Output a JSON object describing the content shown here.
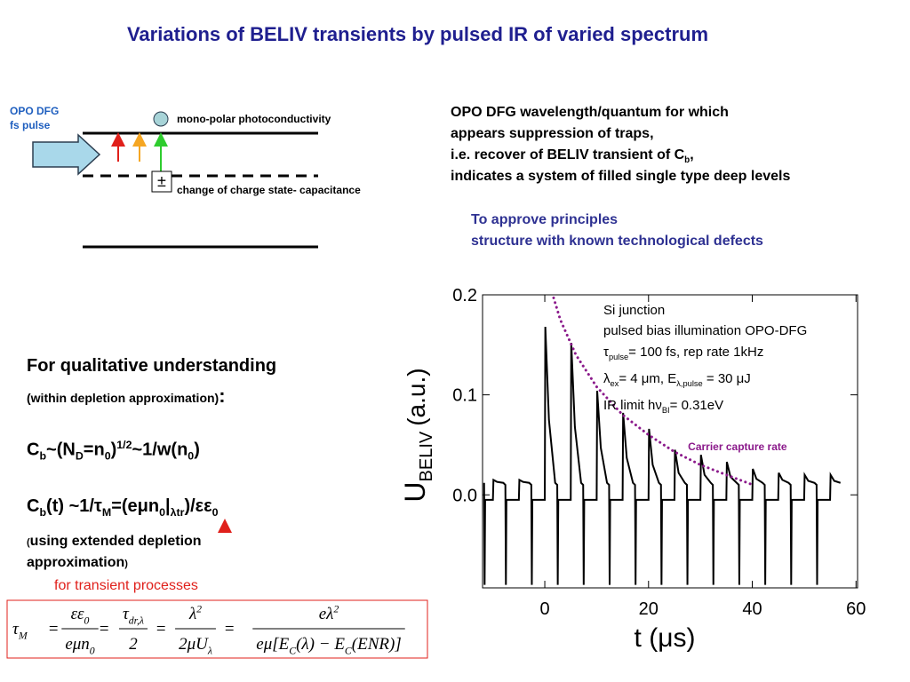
{
  "title": "Variations of BELIV transients by  pulsed IR of varied spectrum",
  "diagram": {
    "pulse_lines": [
      "OPO DFG",
      "fs pulse"
    ],
    "top_label": "mono-polar photoconductivity",
    "bottom_label": "change of charge state- capacitance",
    "charge_symbol": "±"
  },
  "explanation": [
    [
      "OPO DFG wavelength/quantum for which"
    ],
    [
      "appears suppression of traps,"
    ],
    [
      "i.e.  recover of  BELIV transient of C",
      {
        "sub": "b"
      },
      ","
    ],
    [
      "indicates a system of filled single type deep levels"
    ]
  ],
  "approve": [
    [
      "To approve principles"
    ],
    [
      "structure with known technological defects"
    ]
  ],
  "theory": [
    [
      "For qualitative understanding"
    ],
    [
      "(within depletion approximation)",
      ":"
    ],
    [
      "C",
      {
        "sub": "b"
      },
      "~(N",
      {
        "sub": "D"
      },
      "=n",
      {
        "sub": "0"
      },
      ")",
      {
        "sup": "1/2"
      },
      "~1/w(n",
      {
        "sub": "0"
      },
      ")"
    ],
    [
      "C",
      {
        "sub": "b"
      },
      "(t) ~1/τ",
      {
        "sub": "M"
      },
      "=(eμn",
      {
        "sub": "0"
      },
      "|",
      {
        "sub": "λtr"
      },
      ")/εε",
      {
        "sub": "0"
      }
    ],
    [
      "(",
      "using extended depletion"
    ],
    [
      "approximation",
      ")"
    ],
    [
      "for transient processes"
    ]
  ],
  "formula": {
    "eq": "=",
    "lhs": [
      "τ",
      {
        "sub": "M"
      }
    ],
    "terms": [
      {
        "num": [
          "εε",
          {
            "sub": "0"
          }
        ],
        "den": [
          "eμn",
          {
            "sub": "0"
          }
        ]
      },
      {
        "num": [
          "τ",
          {
            "sub": "dr,λ"
          }
        ],
        "den": [
          "2"
        ]
      },
      {
        "num": [
          "λ",
          {
            "sup": "2"
          }
        ],
        "den": [
          "2μU",
          {
            "sub": "λ"
          }
        ]
      },
      {
        "num": [
          "eλ",
          {
            "sup": "2"
          }
        ],
        "den": [
          "eμ[E",
          {
            "sub": "C"
          },
          "(λ) − E",
          {
            "sub": "C"
          },
          "(ENR)]"
        ]
      }
    ]
  },
  "chart_data": {
    "type": "line",
    "xlabel": "t (μs)",
    "ylabel": {
      "main": "U",
      "sub": "BELIV",
      "unit": "(a.u.)"
    },
    "xlim": [
      -12,
      60.3
    ],
    "ylim": [
      -0.093,
      0.2
    ],
    "xticks": [
      0,
      20,
      40,
      60
    ],
    "yticks": [
      {
        "value": 0,
        "label": "0.0"
      },
      0.1,
      0.2
    ],
    "notes": [
      [
        "Si junction"
      ],
      [
        "pulsed bias illumination OPO-DFG"
      ],
      [
        "τ",
        {
          "sub": "pulse"
        },
        "= 100 fs, rep rate 1kHz"
      ],
      [
        "λ",
        {
          "sub": "ex"
        },
        "= 4 μm, E",
        {
          "sub": "λ,pulse"
        },
        " = 30 μJ"
      ],
      [
        "IR limit  hν",
        {
          "sub": "BI"
        },
        "= 0.31eV"
      ]
    ],
    "series": [
      {
        "color": "#000000",
        "line_style": "solid",
        "x": [
          -11.7,
          -11.6,
          -11.5,
          -10,
          -9.9,
          -9.2,
          -8,
          -7.6,
          -7.5,
          -7.4,
          -5,
          -4.9,
          -4.2,
          -3,
          -2.6,
          -2.5,
          -2.4,
          0,
          0.1,
          0.8,
          2,
          2.4,
          2.5,
          2.6,
          5,
          5.1,
          5.8,
          7,
          7.4,
          7.5,
          7.6,
          10,
          10.1,
          10.8,
          12,
          12.4,
          12.5,
          12.6,
          15,
          15.1,
          15.8,
          17,
          17.4,
          17.5,
          17.6,
          20,
          20.1,
          20.8,
          22,
          22.4,
          22.5,
          22.6,
          25,
          25.1,
          25.8,
          27,
          27.4,
          27.5,
          27.6,
          30,
          30.1,
          30.8,
          32,
          32.4,
          32.5,
          32.6,
          35,
          35.1,
          35.8,
          37,
          37.4,
          37.5,
          37.6,
          40,
          40.1,
          40.8,
          42,
          42.4,
          42.5,
          42.6,
          45,
          45.1,
          45.8,
          47,
          47.4,
          47.5,
          47.6,
          50,
          50.1,
          50.8,
          52,
          52.4,
          52.5,
          52.6,
          55,
          55.1,
          55.8,
          57
        ],
        "values": [
          0.012,
          -0.09,
          -0.005,
          -0.005,
          0.015,
          0.013,
          0.012,
          0.01,
          -0.09,
          -0.005,
          -0.005,
          0.015,
          0.013,
          0.012,
          0.01,
          -0.09,
          -0.005,
          -0.005,
          0.168,
          0.075,
          0.012,
          0.01,
          -0.09,
          -0.005,
          -0.005,
          0.152,
          0.068,
          0.012,
          0.01,
          -0.09,
          -0.005,
          -0.005,
          0.104,
          0.047,
          0.012,
          0.01,
          -0.09,
          -0.005,
          -0.005,
          0.082,
          0.037,
          0.012,
          0.01,
          -0.09,
          -0.005,
          -0.005,
          0.066,
          0.03,
          0.012,
          0.01,
          -0.09,
          -0.005,
          -0.005,
          0.045,
          0.022,
          0.012,
          0.01,
          -0.09,
          -0.005,
          -0.005,
          0.04,
          0.02,
          0.012,
          0.01,
          -0.09,
          -0.005,
          -0.005,
          0.033,
          0.018,
          0.012,
          0.01,
          -0.09,
          -0.005,
          -0.005,
          0.026,
          0.016,
          0.012,
          0.01,
          -0.09,
          -0.005,
          -0.005,
          0.022,
          0.015,
          0.012,
          0.01,
          -0.09,
          -0.005,
          -0.005,
          0.02,
          0.014,
          0.012,
          0.01,
          -0.09,
          -0.005,
          -0.005,
          0.02,
          0.014,
          0.012
        ]
      },
      {
        "name": "Carrier capture rate",
        "color": "#8b1a8b",
        "line_style": "dotted",
        "x": [
          1.7,
          3,
          6,
          10,
          15,
          20,
          25,
          30,
          35,
          39.6
        ],
        "values": [
          0.197,
          0.175,
          0.14,
          0.108,
          0.08,
          0.06,
          0.043,
          0.03,
          0.02,
          0.011
        ]
      }
    ]
  }
}
